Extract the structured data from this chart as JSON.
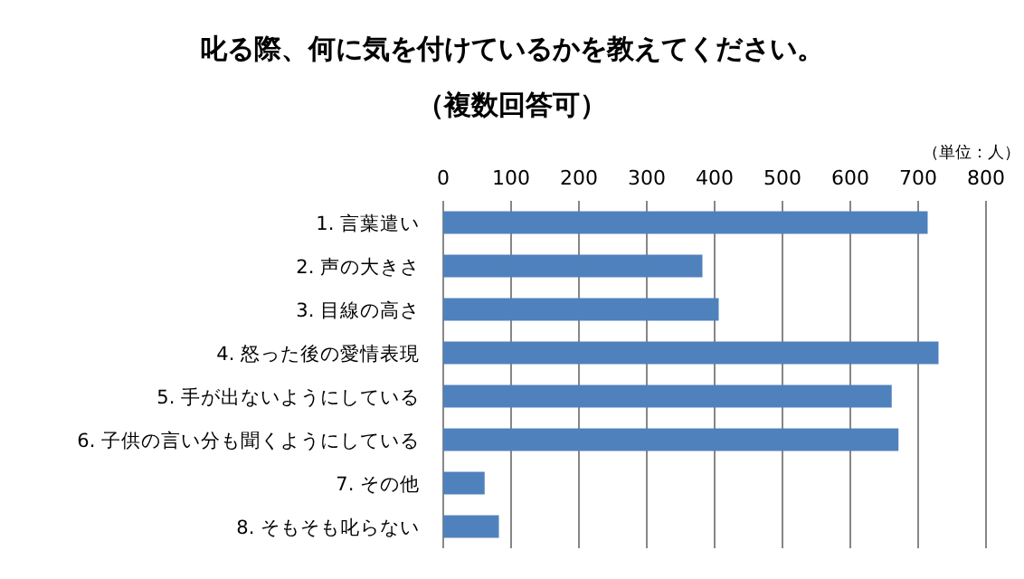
{
  "chart_data": {
    "type": "bar",
    "orientation": "horizontal",
    "title": "叱る際、何に気を付けているかを教えてください。",
    "subtitle": "（複数回答可）",
    "annotations": [
      "（単位：人）"
    ],
    "categories": [
      "1.  言葉遣い",
      "2.  声の大きさ",
      "3.  目線の高さ",
      "4.  怒った後の愛情表現",
      "5.  手が出ないようにしている",
      "6.  子供の言い分も聞くようにしている",
      "7.  その他",
      "8.  そもそも叱らない"
    ],
    "values": [
      714,
      382,
      406,
      730,
      661,
      671,
      61,
      82
    ],
    "color": "#4f81bd",
    "xlim": [
      0,
      800
    ],
    "xticks": [
      0,
      100,
      200,
      300,
      400,
      500,
      600,
      700,
      800
    ],
    "grid": "x"
  }
}
